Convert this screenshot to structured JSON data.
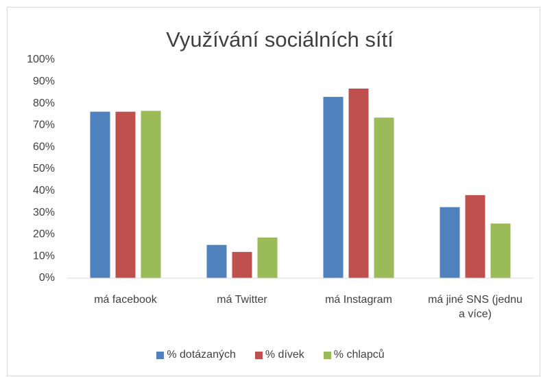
{
  "chart_data": {
    "type": "bar",
    "title": "Využívání sociálních sítí",
    "categories": [
      "má facebook",
      "má Twitter",
      "má Instagram",
      "má jiné SNS (jednu a více)"
    ],
    "series": [
      {
        "name": "% dotázaných",
        "color": "#4f81bd",
        "values": [
          76.2,
          15.2,
          83.0,
          32.5
        ]
      },
      {
        "name": "% dívek",
        "color": "#c0504d",
        "values": [
          76.2,
          12.0,
          86.8,
          38.0
        ]
      },
      {
        "name": "% chlapců",
        "color": "#9bbb59",
        "values": [
          76.6,
          18.6,
          73.5,
          25.0
        ]
      }
    ],
    "ylim": [
      0,
      100
    ],
    "yticks": [
      {
        "value": 0,
        "label": "0%"
      },
      {
        "value": 10,
        "label": "10%"
      },
      {
        "value": 20,
        "label": "20%"
      },
      {
        "value": 30,
        "label": "30%"
      },
      {
        "value": 40,
        "label": "40%"
      },
      {
        "value": 50,
        "label": "50%"
      },
      {
        "value": 60,
        "label": "60%"
      },
      {
        "value": 70,
        "label": "70%"
      },
      {
        "value": 80,
        "label": "80%"
      },
      {
        "value": 90,
        "label": "90%"
      },
      {
        "value": 100,
        "label": "100%"
      }
    ],
    "grid": false,
    "legend": "bottom"
  }
}
